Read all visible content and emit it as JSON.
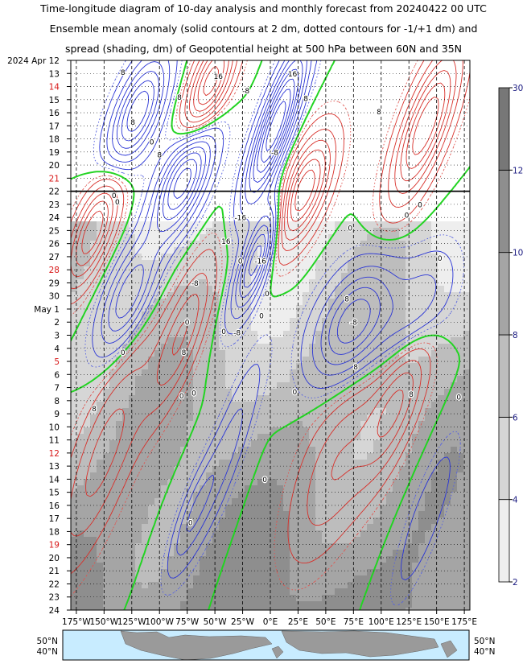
{
  "chart_data": {
    "type": "heatmap",
    "title_lines": [
      "Time-longitude diagram of 10-day analysis and monthly forecast from 20240422 00 UTC",
      "Ensemble mean anomaly (solid contours at 2 dm, dotted contours for -1/+1 dm) and",
      "spread (shading, dm) of Geopotential height at 500 hPa between 60N and 35N"
    ],
    "x_ticks": [
      "175°W",
      "150°W",
      "125°W",
      "100°W",
      "75°W",
      "50°W",
      "25°W",
      "0°E",
      "25°E",
      "50°E",
      "75°E",
      "100°E",
      "125°E",
      "150°E",
      "175°E"
    ],
    "x_values": [
      -175,
      -150,
      -125,
      -100,
      -75,
      -50,
      -25,
      0,
      25,
      50,
      75,
      100,
      125,
      150,
      175
    ],
    "y_ticks": [
      {
        "label": "2024 Apr 12",
        "red": false
      },
      {
        "label": "13",
        "red": false
      },
      {
        "label": "14",
        "red": true
      },
      {
        "label": "15",
        "red": false
      },
      {
        "label": "16",
        "red": false
      },
      {
        "label": "17",
        "red": false
      },
      {
        "label": "18",
        "red": false
      },
      {
        "label": "19",
        "red": false
      },
      {
        "label": "20",
        "red": false
      },
      {
        "label": "21",
        "red": true
      },
      {
        "label": "22",
        "red": false
      },
      {
        "label": "23",
        "red": false
      },
      {
        "label": "24",
        "red": false
      },
      {
        "label": "25",
        "red": false
      },
      {
        "label": "26",
        "red": false
      },
      {
        "label": "27",
        "red": false
      },
      {
        "label": "28",
        "red": true
      },
      {
        "label": "29",
        "red": false
      },
      {
        "label": "30",
        "red": false
      },
      {
        "label": "May  1",
        "red": false
      },
      {
        "label": "2",
        "red": false
      },
      {
        "label": "3",
        "red": false
      },
      {
        "label": "4",
        "red": false
      },
      {
        "label": "5",
        "red": true
      },
      {
        "label": "6",
        "red": false
      },
      {
        "label": "7",
        "red": false
      },
      {
        "label": "8",
        "red": false
      },
      {
        "label": "9",
        "red": false
      },
      {
        "label": "10",
        "red": false
      },
      {
        "label": "11",
        "red": false
      },
      {
        "label": "12",
        "red": true
      },
      {
        "label": "13",
        "red": false
      },
      {
        "label": "14",
        "red": false
      },
      {
        "label": "15",
        "red": false
      },
      {
        "label": "16",
        "red": false
      },
      {
        "label": "17",
        "red": false
      },
      {
        "label": "18",
        "red": false
      },
      {
        "label": "19",
        "red": true
      },
      {
        "label": "20",
        "red": false
      },
      {
        "label": "21",
        "red": false
      },
      {
        "label": "22",
        "red": false
      },
      {
        "label": "23",
        "red": false
      },
      {
        "label": "24",
        "red": false
      }
    ],
    "analysis_end_day_index": 10,
    "colorbar": {
      "levels": [
        2,
        4,
        6,
        8,
        10,
        12,
        30
      ],
      "labels": [
        "2",
        "4",
        "6",
        "8",
        "10",
        "12",
        "30"
      ],
      "colors": [
        "#eeeeee",
        "#d6d6d6",
        "#bdbdbd",
        "#a5a5a5",
        "#8e8e8e",
        "#777777"
      ]
    },
    "contour_labels": [
      {
        "text": "8",
        "lon": -133,
        "day": 0.9
      },
      {
        "text": "8",
        "lon": -82,
        "day": 2.8
      },
      {
        "text": "16",
        "lon": -47,
        "day": 1.2
      },
      {
        "text": "-8",
        "lon": -22,
        "day": 2.3
      },
      {
        "text": "16",
        "lon": 20,
        "day": 1.0
      },
      {
        "text": "8",
        "lon": 32,
        "day": 2.9
      },
      {
        "text": "8",
        "lon": 98,
        "day": 3.9
      },
      {
        "text": "8",
        "lon": -124,
        "day": 4.7
      },
      {
        "text": "0",
        "lon": -107,
        "day": 6.2
      },
      {
        "text": "8",
        "lon": -100,
        "day": 7.2
      },
      {
        "text": "-8",
        "lon": 4,
        "day": 7.0
      },
      {
        "text": "0",
        "lon": -141,
        "day": 10.3
      },
      {
        "text": "-16",
        "lon": -27,
        "day": 12.0
      },
      {
        "text": "16",
        "lon": -40,
        "day": 13.8
      },
      {
        "text": "0",
        "lon": -27,
        "day": 15.3
      },
      {
        "text": "-16",
        "lon": -9,
        "day": 15.3
      },
      {
        "text": "0",
        "lon": 72,
        "day": 12.8
      },
      {
        "text": "8",
        "lon": 69,
        "day": 18.2
      },
      {
        "text": "0",
        "lon": 123,
        "day": 11.8
      },
      {
        "text": "8",
        "lon": -159,
        "day": 26.6
      },
      {
        "text": "8",
        "lon": -78,
        "day": 22.3
      },
      {
        "text": "8",
        "lon": 77,
        "day": 23.4
      },
      {
        "text": "0",
        "lon": -138,
        "day": 10.8
      },
      {
        "text": "-8",
        "lon": -68,
        "day": 17.0
      },
      {
        "text": "0",
        "lon": -69,
        "day": 25.4
      },
      {
        "text": "0",
        "lon": 153,
        "day": 15.1
      },
      {
        "text": "-8",
        "lon": 75,
        "day": 20.0
      },
      {
        "text": "0",
        "lon": -133,
        "day": 22.3
      },
      {
        "text": "0",
        "lon": -75,
        "day": 20.0
      },
      {
        "text": "0",
        "lon": -3,
        "day": 17.8
      },
      {
        "text": "-8",
        "lon": -30,
        "day": 20.8
      },
      {
        "text": "0",
        "lon": -8,
        "day": 19.5
      },
      {
        "text": "0",
        "lon": -42,
        "day": 20.7
      },
      {
        "text": "0",
        "lon": -80,
        "day": 25.6
      },
      {
        "text": "0",
        "lon": 22,
        "day": 25.3
      },
      {
        "text": "8",
        "lon": 127,
        "day": 25.5
      },
      {
        "text": "0",
        "lon": 170,
        "day": 25.7
      },
      {
        "text": "0",
        "lon": -72,
        "day": 35.3
      },
      {
        "text": "0",
        "lon": -5,
        "day": 32.0
      },
      {
        "text": "0",
        "lon": 135,
        "day": 11.0
      }
    ],
    "map_lat_labels": [
      "50°N",
      "40°N"
    ]
  }
}
